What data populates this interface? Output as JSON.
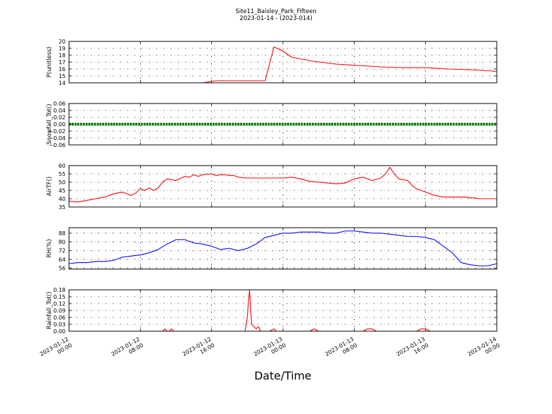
{
  "figure": {
    "title_line1": "Site11_Baisley_Park_Fifteen",
    "title_line2": "2023-01-14 - (2023-014)",
    "xlabel": "Date/Time"
  },
  "chart_data": [
    {
      "type": "line",
      "ylabel": "P(unitless)",
      "ylim": [
        14,
        20
      ],
      "yticks": [
        14,
        15,
        16,
        17,
        18,
        19,
        20
      ],
      "ytick_labels": [
        "14",
        "15",
        "16",
        "17",
        "18",
        "19",
        "20"
      ],
      "grid": true,
      "series": [
        {
          "color": "#ff0000",
          "x": [
            0,
            10,
            20,
            30,
            33,
            35,
            37,
            40,
            42,
            44,
            46,
            48,
            50,
            55,
            60,
            65,
            70,
            75,
            80,
            85,
            90,
            95,
            96
          ],
          "y": [
            14,
            14,
            14,
            14,
            14.3,
            14.3,
            14.3,
            14.3,
            14.3,
            14.3,
            19.2,
            18.6,
            17.7,
            17.1,
            16.7,
            16.5,
            16.3,
            16.2,
            16.2,
            16.0,
            15.9,
            15.7,
            15.6
          ]
        }
      ]
    },
    {
      "type": "scatter",
      "ylabel": "Snowfall_Tot()",
      "ylim": [
        -0.06,
        0.06
      ],
      "yticks": [
        -0.06,
        -0.04,
        -0.02,
        0,
        0.02,
        0.04,
        0.06
      ],
      "ytick_labels": [
        "−0.06",
        "−0.04",
        "−0.02",
        "0.00",
        "0.02",
        "0.04",
        "0.06"
      ],
      "grid": true,
      "series": [
        {
          "color": "#008000",
          "x": [
            0,
            96
          ],
          "y": [
            0,
            0
          ]
        }
      ]
    },
    {
      "type": "line",
      "ylabel": "AirTF()",
      "ylim": [
        35,
        60
      ],
      "yticks": [
        35,
        40,
        45,
        50,
        55,
        60
      ],
      "ytick_labels": [
        "35",
        "40",
        "45",
        "50",
        "55",
        "60"
      ],
      "grid": true,
      "series": [
        {
          "color": "#ff0000",
          "x": [
            0,
            2,
            4,
            6,
            8,
            10,
            12,
            14,
            15,
            16,
            17,
            18,
            19,
            20,
            21,
            22,
            24,
            26,
            27,
            28,
            29,
            30,
            32,
            33,
            34,
            35,
            36,
            37,
            38,
            40,
            42,
            44,
            46,
            48,
            50,
            52,
            54,
            56,
            58,
            60,
            62,
            64,
            66,
            68,
            70,
            71,
            72,
            73,
            74,
            76,
            77,
            78,
            80,
            82,
            84,
            86,
            88,
            89,
            90,
            91,
            92,
            93,
            94,
            95,
            96
          ],
          "y": [
            38.5,
            38,
            39,
            40,
            41,
            43,
            44,
            42,
            43.5,
            46,
            45,
            46.5,
            45,
            46.5,
            50,
            52,
            51,
            53.5,
            53,
            54.5,
            53.5,
            54.5,
            55,
            54,
            54.5,
            54.5,
            54,
            54,
            53,
            52.5,
            52.5,
            52.5,
            52.5,
            52.5,
            53,
            52,
            50.5,
            50,
            49.5,
            49,
            49.5,
            52,
            53,
            51,
            52.5,
            55,
            59,
            55,
            52,
            51,
            48,
            46,
            44,
            42,
            41,
            41,
            41,
            41,
            40.5,
            40.5,
            40,
            40,
            40,
            40,
            40
          ]
        }
      ]
    },
    {
      "type": "line",
      "ylabel": "RH(%)",
      "ylim": [
        55,
        93
      ],
      "yticks": [
        56,
        64,
        72,
        80,
        88
      ],
      "ytick_labels": [
        "56",
        "64",
        "72",
        "80",
        "88"
      ],
      "grid": true,
      "series": [
        {
          "color": "#0000ff",
          "x": [
            0,
            2,
            4,
            6,
            8,
            10,
            12,
            14,
            16,
            18,
            20,
            22,
            24,
            26,
            28,
            30,
            32,
            34,
            36,
            38,
            40,
            42,
            44,
            46,
            48,
            50,
            52,
            54,
            56,
            58,
            60,
            62,
            64,
            66,
            68,
            70,
            72,
            74,
            76,
            78,
            80,
            82,
            84,
            86,
            88,
            90,
            92,
            94,
            96
          ],
          "y": [
            60,
            61,
            61,
            62,
            62,
            63,
            66,
            67,
            68,
            70,
            73,
            78,
            82,
            82,
            79,
            78,
            76,
            73,
            74,
            72,
            74,
            78,
            84,
            86,
            88,
            88,
            89,
            89,
            89,
            88,
            88,
            90,
            90,
            89,
            88,
            88,
            87,
            86,
            85,
            85,
            84,
            82,
            76,
            70,
            61,
            59,
            58,
            58,
            60
          ]
        }
      ]
    },
    {
      "type": "line",
      "ylabel": "Rainfall_Tot()",
      "ylim": [
        0,
        0.18
      ],
      "yticks": [
        0,
        0.03,
        0.06,
        0.09,
        0.12,
        0.15,
        0.18
      ],
      "ytick_labels": [
        "0.00",
        "0.03",
        "0.06",
        "0.09",
        "0.12",
        "0.15",
        "0.18"
      ],
      "grid": true,
      "series": [
        {
          "color": "#ff0000",
          "x": [
            0,
            21,
            21.5,
            22,
            22.5,
            23,
            23.5,
            24,
            39.5,
            40,
            40.5,
            41,
            41.5,
            42,
            42.5,
            43,
            44,
            45,
            46,
            46.5,
            47,
            54,
            55,
            56,
            66,
            67,
            68,
            69,
            78,
            79,
            80,
            81,
            96
          ],
          "y": [
            0,
            0,
            0.01,
            0,
            0,
            0.01,
            0,
            0,
            0,
            0.06,
            0.18,
            0.03,
            0.02,
            0.01,
            0.02,
            0,
            0,
            0,
            0.01,
            0,
            0,
            0,
            0.01,
            0,
            0,
            0.01,
            0.01,
            0,
            0,
            0.01,
            0.01,
            0,
            0
          ]
        }
      ]
    }
  ],
  "x_axis": {
    "xlim_hours": [
      0,
      96
    ],
    "ticks_hours": [
      0,
      16,
      32,
      48,
      64,
      80,
      96
    ],
    "tick_labels_line1": [
      "2023-01-12",
      "2023-01-12",
      "2023-01-12",
      "2023-01-13",
      "2023-01-13",
      "2023-01-13",
      "2023-01-14"
    ],
    "tick_labels_line2": [
      "00:00",
      "08:00",
      "16:00",
      "00:00",
      "08:00",
      "16:00",
      "00:00"
    ]
  }
}
